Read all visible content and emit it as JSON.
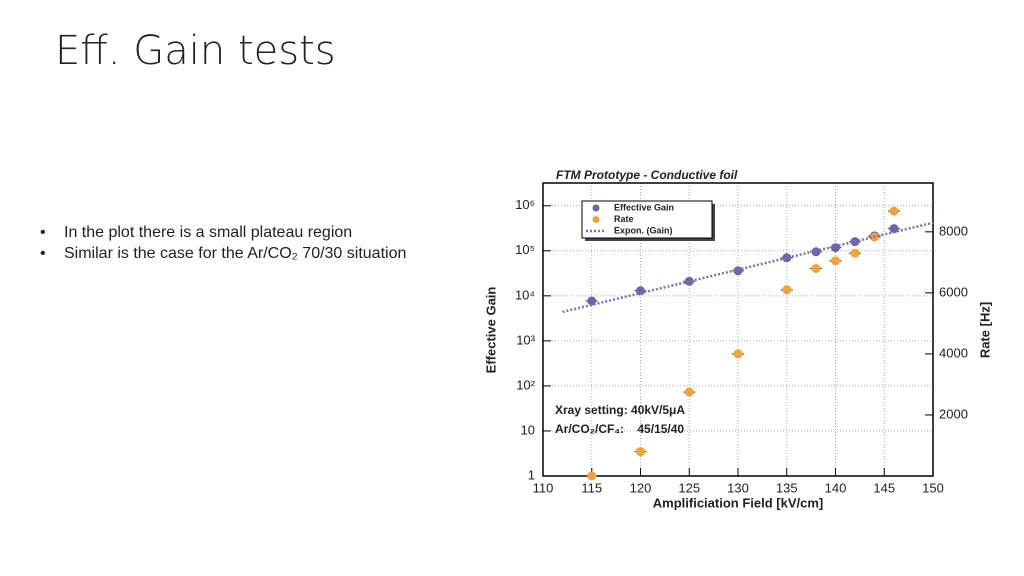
{
  "slide": {
    "title": "Eff. Gain tests",
    "bullets": [
      "In the plot there is a small plateau region",
      "Similar is the case for the Ar/CO₂ 70/30 situation"
    ]
  },
  "chart_data": {
    "type": "scatter",
    "title": "FTM Prototype - Conductive foil",
    "x_label": "Amplificiation Field [kV/cm]",
    "y_label": "Effective Gain",
    "y2_label": "Rate [Hz]",
    "xlim": [
      110,
      150
    ],
    "xticks": [
      110,
      115,
      120,
      125,
      130,
      135,
      140,
      145,
      150
    ],
    "ylim": [
      1,
      3200000
    ],
    "y_log": true,
    "yticks": [
      1,
      10,
      {
        "value": 100,
        "label": "10²"
      },
      {
        "value": 1000,
        "label": "10³"
      },
      {
        "value": 10000,
        "label": "10⁴"
      },
      {
        "value": 100000,
        "label": "10⁵"
      },
      {
        "value": 1000000,
        "label": "10⁶"
      }
    ],
    "y2lim": [
      0,
      9600
    ],
    "y2ticks": [
      2000,
      4000,
      6000,
      8000
    ],
    "grid": true,
    "legend": "top-left",
    "series": [
      {
        "name": "Effective Gain",
        "color": "#6b64a6",
        "marker": "circle",
        "x": [
          115,
          120,
          125,
          130,
          135,
          138,
          140,
          142,
          144,
          146
        ],
        "values": [
          7700,
          13000,
          21000,
          36000,
          70000,
          95000,
          117000,
          160000,
          215000,
          310000
        ]
      },
      {
        "name": "Rate",
        "color": "#f4a235",
        "marker": "circle",
        "axis": "y2",
        "x": [
          115,
          120,
          125,
          130,
          135,
          138,
          140,
          142,
          144,
          146
        ],
        "values": [
          0,
          800,
          2750,
          4000,
          6100,
          6800,
          7050,
          7300,
          7830,
          8680
        ]
      },
      {
        "name": "Expon. (Gain)",
        "color": "#7b72b8",
        "marker": "dotted-line",
        "x": [
          112,
          150
        ],
        "values": [
          4400,
          420000
        ]
      }
    ],
    "annotations": [
      "Xray setting: 40kV/5μA",
      "Ar/CO₂/CF₄:    45/15/40"
    ]
  }
}
